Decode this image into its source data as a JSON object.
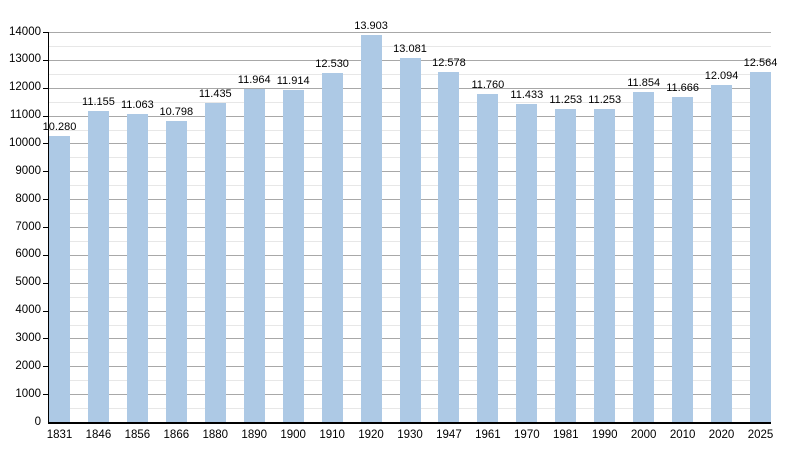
{
  "chart_data": {
    "type": "bar",
    "title": "",
    "xlabel": "",
    "ylabel": "",
    "categories": [
      "1831",
      "1846",
      "1856",
      "1866",
      "1880",
      "1890",
      "1900",
      "1910",
      "1920",
      "1930",
      "1947",
      "1961",
      "1970",
      "1981",
      "1990",
      "2000",
      "2010",
      "2020",
      "2025"
    ],
    "values": [
      10280,
      11155,
      11063,
      10798,
      11435,
      11964,
      11914,
      12530,
      13903,
      13081,
      12578,
      11760,
      11433,
      11253,
      11253,
      11854,
      11666,
      12094,
      12564
    ],
    "value_labels": [
      "10.280",
      "11.155",
      "11.063",
      "10.798",
      "11.435",
      "11.964",
      "11.914",
      "12.530",
      "13.903",
      "13.081",
      "12.578",
      "11.760",
      "11.433",
      "11.253",
      "11.253",
      "11.854",
      "11.666",
      "12.094",
      "12.564"
    ],
    "ylim": [
      0,
      14000
    ],
    "ytick_major": 1000,
    "ytick_minor": 500,
    "grid": "on",
    "legend": "none",
    "colors": {
      "bar_fill": "#adc9e5",
      "grid_major": "#a8a8a8",
      "grid_minor": "#e7e7e7",
      "axis": "#000000",
      "text": "#000000",
      "background": "#ffffff"
    }
  }
}
